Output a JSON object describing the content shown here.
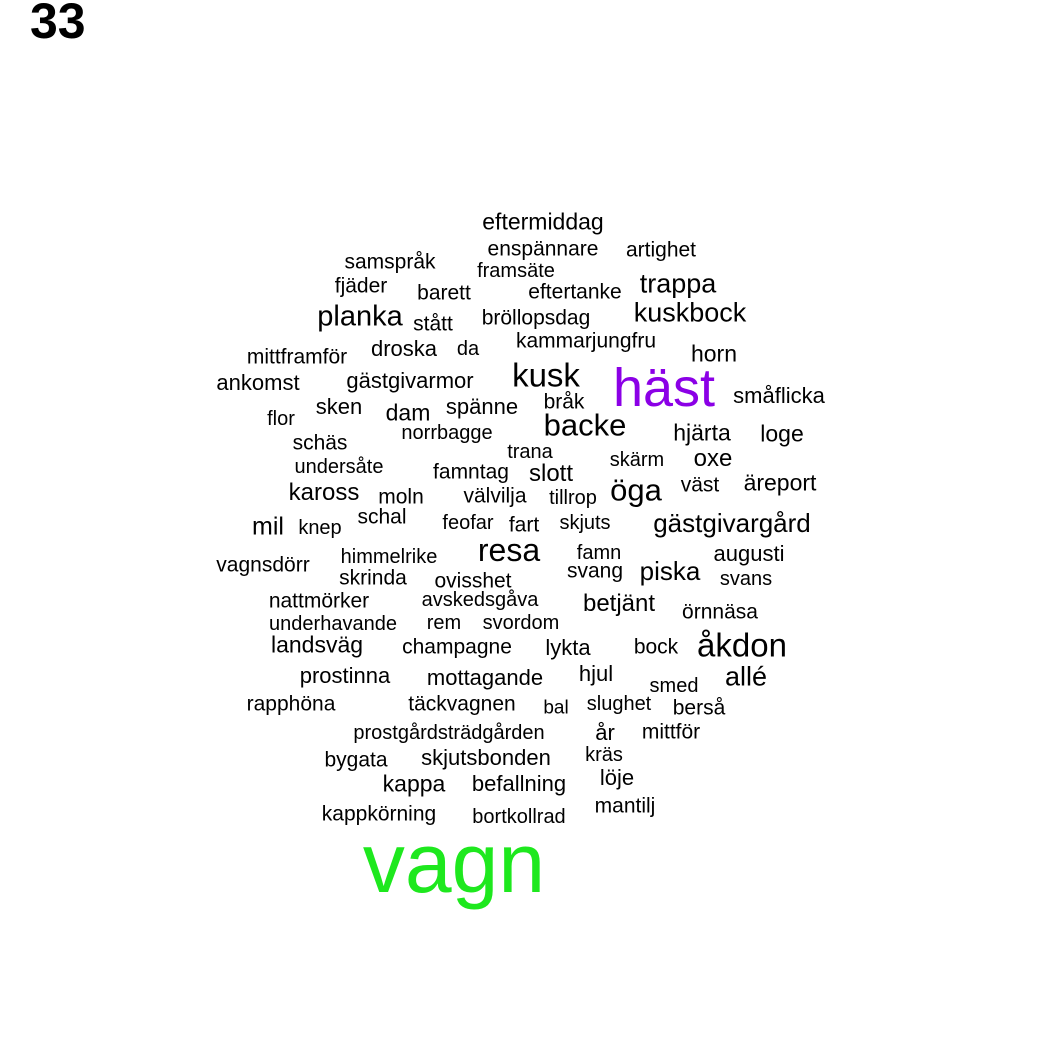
{
  "page": {
    "number": "33"
  },
  "colors": {
    "default": "#000000",
    "hast": "#8b00e6",
    "vagn": "#1ee81e"
  },
  "words": [
    "eftermiddag",
    "enspännare",
    "artighet",
    "samspråk",
    "framsäte",
    "fjäder",
    "barett",
    "eftertanke",
    "trappa",
    "planka",
    "stått",
    "bröllopsdag",
    "kuskbock",
    "kammarjungfru",
    "mittframför",
    "droska",
    "da",
    "horn",
    "ankomst",
    "gästgivarmor",
    "kusk",
    "häst",
    "småflicka",
    "sken",
    "dam",
    "spänne",
    "bråk",
    "flor",
    "norrbagge",
    "backe",
    "hjärta",
    "loge",
    "schäs",
    "trana",
    "skärm",
    "oxe",
    "undersåte",
    "famntag",
    "slott",
    "kaross",
    "moln",
    "välvilja",
    "tillrop",
    "öga",
    "väst",
    "äreport",
    "schal",
    "mil",
    "knep",
    "feofar",
    "fart",
    "skjuts",
    "gästgivargård",
    "resa",
    "famn",
    "augusti",
    "vagnsdörr",
    "himmelrike",
    "skrinda",
    "ovisshet",
    "svang",
    "piska",
    "svans",
    "nattmörker",
    "avskedsgåva",
    "betjänt",
    "örnnäsa",
    "underhavande",
    "rem",
    "svordom",
    "landsväg",
    "champagne",
    "lykta",
    "bock",
    "åkdon",
    "prostinna",
    "mottagande",
    "hjul",
    "allé",
    "smed",
    "rapphöna",
    "täckvagnen",
    "bal",
    "slughet",
    "berså",
    "prostgårdsträdgården",
    "år",
    "mittför",
    "bygata",
    "skjutsbonden",
    "kräs",
    "kappa",
    "befallning",
    "löje",
    "kappkörning",
    "bortkollrad",
    "mantilj",
    "vagn"
  ]
}
